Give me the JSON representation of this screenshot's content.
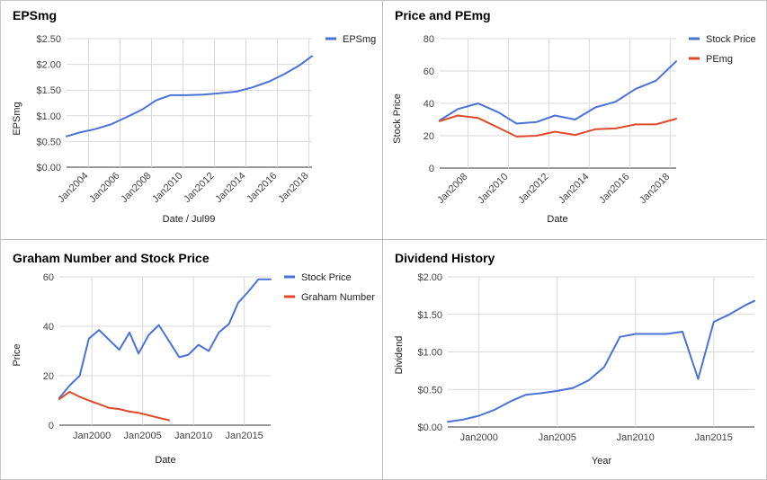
{
  "chart_data": [
    {
      "type": "line",
      "title": "EPSmg",
      "xlabel": "Date / Jul99",
      "ylabel": "EPSmg",
      "xlim": [
        2002.6,
        2018.2
      ],
      "ylim": [
        0,
        2.5
      ],
      "yticks": [
        0,
        0.5,
        1.0,
        1.5,
        2.0,
        2.5
      ],
      "ytick_labels": [
        "$0.00",
        "$0.50",
        "$1.00",
        "$1.50",
        "$2.00",
        "$2.50"
      ],
      "xticks": [
        2004,
        2006,
        2008,
        2010,
        2012,
        2014,
        2016,
        2018
      ],
      "xtick_labels": [
        "Jan2004",
        "Jan2006",
        "Jan2008",
        "Jan2010",
        "Jan2012",
        "Jan2014",
        "Jan2016",
        "Jan2018"
      ],
      "xtick_rotated": true,
      "legend": "top-right",
      "grid": true,
      "series": [
        {
          "name": "EPSmg",
          "color": "#4a72d6",
          "x": [
            2002.6,
            2003.5,
            2004.4,
            2005.4,
            2006.4,
            2007.4,
            2008.3,
            2009.2,
            2010.2,
            2011.3,
            2012.4,
            2013.4,
            2014.4,
            2015.5,
            2016.5,
            2017.4,
            2018.2
          ],
          "y": [
            0.6,
            0.68,
            0.74,
            0.83,
            0.97,
            1.12,
            1.3,
            1.4,
            1.4,
            1.41,
            1.44,
            1.47,
            1.55,
            1.67,
            1.82,
            1.98,
            2.16
          ]
        }
      ]
    },
    {
      "type": "line",
      "title": "Price and PEmg",
      "xlabel": "Date",
      "ylabel": "Stock Price",
      "xlim": [
        2006.6,
        2018.3
      ],
      "ylim": [
        0,
        80
      ],
      "yticks": [
        0,
        20,
        40,
        60,
        80
      ],
      "ytick_labels": [
        "0",
        "20",
        "40",
        "60",
        "80"
      ],
      "xticks": [
        2008,
        2010,
        2012,
        2014,
        2016,
        2018
      ],
      "xtick_labels": [
        "Jan2008",
        "Jan2010",
        "Jan2012",
        "Jan2014",
        "Jan2016",
        "Jan2018"
      ],
      "xtick_rotated": true,
      "legend": "top-right",
      "grid": true,
      "series": [
        {
          "name": "Stock Price",
          "color": "#4a72d6",
          "x": [
            2006.6,
            2007.5,
            2008.5,
            2009.5,
            2010.4,
            2011.4,
            2012.3,
            2013.3,
            2014.3,
            2015.3,
            2016.3,
            2017.3,
            2018.3
          ],
          "y": [
            29.5,
            36.5,
            40.0,
            34.5,
            27.5,
            28.5,
            32.5,
            30.0,
            37.5,
            41.0,
            49.0,
            54.0,
            66.0
          ]
        },
        {
          "name": "PEmg",
          "color": "#e0492a",
          "x": [
            2006.6,
            2007.5,
            2008.5,
            2009.5,
            2010.4,
            2011.4,
            2012.3,
            2013.3,
            2014.3,
            2015.3,
            2016.3,
            2017.3,
            2018.3
          ],
          "y": [
            29.0,
            32.5,
            31.0,
            25.0,
            19.5,
            20.0,
            22.5,
            20.5,
            24.0,
            24.5,
            27.0,
            27.0,
            30.5
          ]
        }
      ]
    },
    {
      "type": "line",
      "title": "Graham Number and Stock Price",
      "xlabel": "Date",
      "ylabel": "Price",
      "xlim": [
        1996.8,
        2017.6
      ],
      "ylim": [
        0,
        60
      ],
      "yticks": [
        0,
        20,
        40,
        60
      ],
      "ytick_labels": [
        "0",
        "20",
        "40",
        "60"
      ],
      "xticks": [
        2000,
        2005,
        2010,
        2015
      ],
      "xtick_labels": [
        "Jan2000",
        "Jan2005",
        "Jan2010",
        "Jan2015"
      ],
      "xtick_rotated": false,
      "legend": "top-right",
      "grid": true,
      "series": [
        {
          "name": "Stock Price",
          "color": "#4a72d6",
          "x": [
            1996.8,
            1997.8,
            1998.8,
            1999.7,
            2000.7,
            2001.7,
            2002.7,
            2003.7,
            2004.6,
            2005.6,
            2006.6,
            2007.6,
            2008.6,
            2009.5,
            2010.5,
            2011.5,
            2012.5,
            2013.5,
            2014.4,
            2015.4,
            2016.4,
            2017.6
          ],
          "y": [
            11,
            16,
            20,
            35,
            38.5,
            34.5,
            30.5,
            37.5,
            29,
            36.5,
            40.5,
            34,
            27.5,
            28.5,
            32.5,
            30,
            37.5,
            41,
            49.5,
            54,
            59,
            59
          ]
        },
        {
          "name": "Graham Number",
          "color": "#e0492a",
          "x": [
            1996.8,
            1997.8,
            1998.8,
            1999.7,
            2000.7,
            2001.7,
            2002.7,
            2003.7,
            2004.6,
            2005.6,
            2006.6,
            2007.6
          ],
          "y": [
            10.5,
            13.5,
            11.5,
            10,
            8.5,
            7,
            6.5,
            5.5,
            5,
            4,
            3,
            2
          ]
        }
      ]
    },
    {
      "type": "line",
      "title": "Dividend History",
      "xlabel": "Year",
      "ylabel": "Dividend",
      "xlim": [
        1998.0,
        2017.6
      ],
      "ylim": [
        0,
        2.0
      ],
      "yticks": [
        0,
        0.5,
        1.0,
        1.5,
        2.0
      ],
      "ytick_labels": [
        "$0.00",
        "$0.50",
        "$1.00",
        "$1.50",
        "$2.00"
      ],
      "xticks": [
        2000,
        2005,
        2010,
        2015
      ],
      "xtick_labels": [
        "Jan2000",
        "Jan2005",
        "Jan2010",
        "Jan2015"
      ],
      "xtick_rotated": false,
      "legend": "none",
      "grid": true,
      "series": [
        {
          "name": "",
          "color": "#4a72d6",
          "x": [
            1998.0,
            1999.0,
            2000.0,
            2001.0,
            2002.0,
            2003.0,
            2004.0,
            2005.0,
            2006.0,
            2007.0,
            2008.0,
            2009.0,
            2010.0,
            2011.0,
            2012.0,
            2013.0,
            2014.0,
            2015.0,
            2016.0,
            2017.0,
            2017.6
          ],
          "y": [
            0.07,
            0.1,
            0.15,
            0.23,
            0.34,
            0.43,
            0.45,
            0.48,
            0.52,
            0.62,
            0.8,
            1.2,
            1.24,
            1.24,
            1.24,
            1.27,
            0.64,
            1.4,
            1.5,
            1.62,
            1.68
          ]
        }
      ]
    }
  ]
}
